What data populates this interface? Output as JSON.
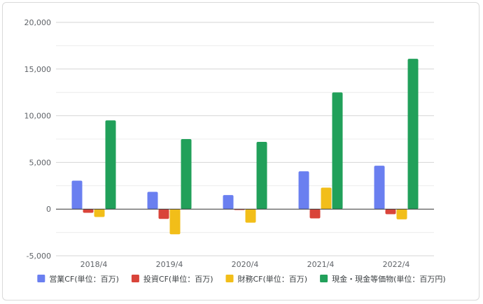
{
  "chart_data": {
    "type": "bar",
    "categories": [
      "2018/4",
      "2019/4",
      "2020/4",
      "2021/4",
      "2022/4"
    ],
    "series": [
      {
        "name": "営業CF(単位：百万)",
        "color": "#6a7ff0",
        "values": [
          3050,
          1850,
          1500,
          4050,
          4650
        ]
      },
      {
        "name": "投資CF(単位：百万)",
        "color": "#d9443a",
        "values": [
          -400,
          -1050,
          -100,
          -1000,
          -550
        ]
      },
      {
        "name": "財務CF(単位：百万)",
        "color": "#f2be19",
        "values": [
          -850,
          -2700,
          -1450,
          2300,
          -1100
        ]
      },
      {
        "name": "現金・現金等価物(単位：百万円)",
        "color": "#21a05a",
        "values": [
          9500,
          7500,
          7200,
          12500,
          16100
        ]
      }
    ],
    "ylim": [
      -5000,
      20000
    ],
    "yticks": [
      -5000,
      0,
      5000,
      10000,
      15000,
      20000
    ],
    "ytick_labels": [
      "-5,000",
      "0",
      "5,000",
      "10,000",
      "15,000",
      "20,000"
    ],
    "grid": true,
    "legend": "bottom"
  }
}
